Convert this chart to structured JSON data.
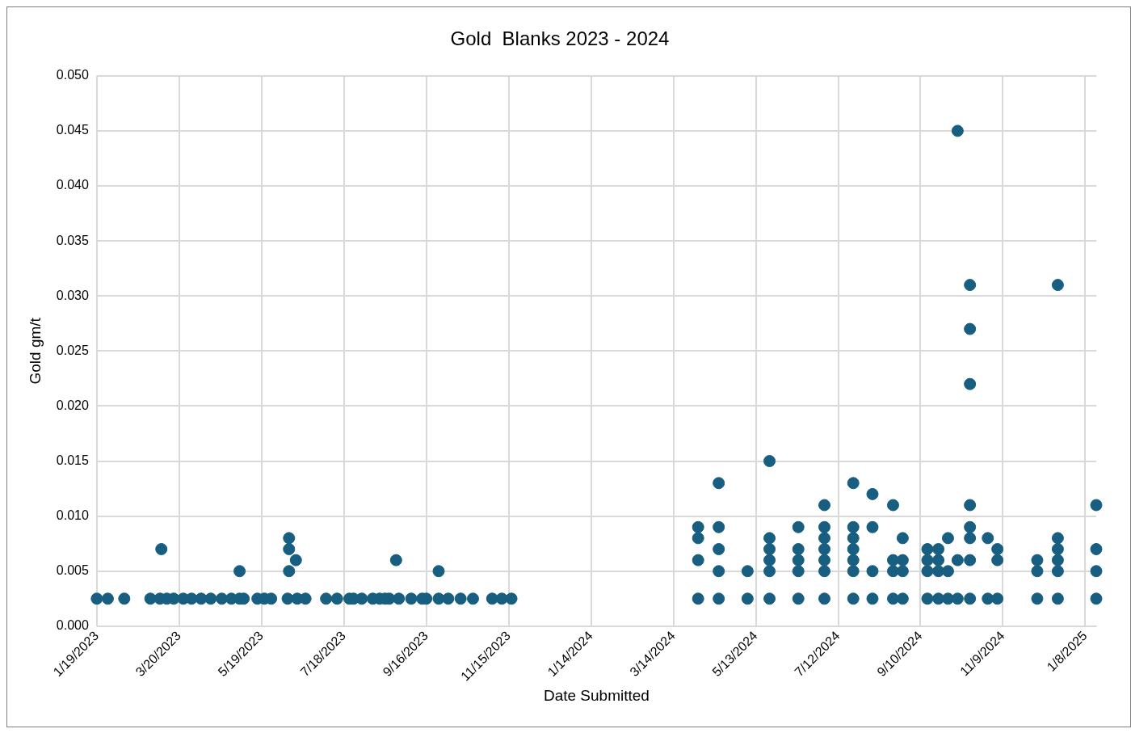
{
  "chart_data": {
    "type": "scatter",
    "title": "Gold  Blanks 2023 - 2024",
    "xlabel": "Date Submitted",
    "ylabel": "Gold gm/t",
    "marker": "circle",
    "grid": true,
    "legend": false,
    "xlim": [
      "2023-01-19",
      "2025-01-16"
    ],
    "xticks": [
      {
        "value": "2023-01-19",
        "label": "1/19/2023"
      },
      {
        "value": "2023-03-20",
        "label": "3/20/2023"
      },
      {
        "value": "2023-05-19",
        "label": "5/19/2023"
      },
      {
        "value": "2023-07-18",
        "label": "7/18/2023"
      },
      {
        "value": "2023-09-16",
        "label": "9/16/2023"
      },
      {
        "value": "2023-11-15",
        "label": "11/15/2023"
      },
      {
        "value": "2024-01-14",
        "label": "1/14/2024"
      },
      {
        "value": "2024-03-14",
        "label": "3/14/2024"
      },
      {
        "value": "2024-05-13",
        "label": "5/13/2024"
      },
      {
        "value": "2024-07-12",
        "label": "7/12/2024"
      },
      {
        "value": "2024-09-10",
        "label": "9/10/2024"
      },
      {
        "value": "2024-11-09",
        "label": "11/9/2024"
      },
      {
        "value": "2025-01-08",
        "label": "1/8/2025"
      }
    ],
    "ylim": [
      0,
      0.05
    ],
    "yticks": [
      {
        "value": 0,
        "label": "0.000"
      },
      {
        "value": 0.005,
        "label": "0.005"
      },
      {
        "value": 0.01,
        "label": "0.010"
      },
      {
        "value": 0.015,
        "label": "0.015"
      },
      {
        "value": 0.02,
        "label": "0.020"
      },
      {
        "value": 0.025,
        "label": "0.025"
      },
      {
        "value": 0.03,
        "label": "0.030"
      },
      {
        "value": 0.035,
        "label": "0.035"
      },
      {
        "value": 0.04,
        "label": "0.040"
      },
      {
        "value": 0.045,
        "label": "0.045"
      },
      {
        "value": 0.05,
        "label": "0.050"
      }
    ],
    "series": [
      {
        "color": "#175e80",
        "x": [
          "2023-01-19",
          "2023-01-27",
          "2023-02-08",
          "2023-02-27",
          "2023-03-06",
          "2023-03-11",
          "2023-03-16",
          "2023-03-23",
          "2023-03-29",
          "2023-04-05",
          "2023-04-12",
          "2023-04-20",
          "2023-04-27",
          "2023-05-03",
          "2023-05-06",
          "2023-05-16",
          "2023-05-21",
          "2023-05-26",
          "2023-06-07",
          "2023-06-14",
          "2023-06-20",
          "2023-07-05",
          "2023-07-13",
          "2023-07-22",
          "2023-07-25",
          "2023-07-31",
          "2023-08-08",
          "2023-08-13",
          "2023-08-17",
          "2023-08-20",
          "2023-08-27",
          "2023-09-05",
          "2023-09-13",
          "2023-09-16",
          "2023-09-25",
          "2023-10-02",
          "2023-10-11",
          "2023-10-20",
          "2023-11-03",
          "2023-11-10",
          "2023-11-17",
          "2023-03-07",
          "2023-05-03",
          "2023-06-08",
          "2023-06-08",
          "2023-06-08",
          "2023-06-13",
          "2023-08-25",
          "2023-09-25",
          "2024-04-01",
          "2024-04-01",
          "2024-04-01",
          "2024-04-01",
          "2024-04-16",
          "2024-04-16",
          "2024-04-16",
          "2024-04-16",
          "2024-04-16",
          "2024-05-07",
          "2024-05-07",
          "2024-05-23",
          "2024-05-23",
          "2024-05-23",
          "2024-05-23",
          "2024-05-23",
          "2024-05-23",
          "2024-06-13",
          "2024-06-13",
          "2024-06-13",
          "2024-06-13",
          "2024-06-13",
          "2024-07-02",
          "2024-07-02",
          "2024-07-02",
          "2024-07-02",
          "2024-07-02",
          "2024-07-02",
          "2024-07-02",
          "2024-07-23",
          "2024-07-23",
          "2024-07-23",
          "2024-07-23",
          "2024-07-23",
          "2024-07-23",
          "2024-07-23",
          "2024-08-06",
          "2024-08-06",
          "2024-08-06",
          "2024-08-06",
          "2024-08-21",
          "2024-08-21",
          "2024-08-21",
          "2024-08-21",
          "2024-08-28",
          "2024-08-28",
          "2024-08-28",
          "2024-08-28",
          "2024-09-15",
          "2024-09-15",
          "2024-09-15",
          "2024-09-15",
          "2024-09-23",
          "2024-09-23",
          "2024-09-23",
          "2024-09-23",
          "2024-09-30",
          "2024-09-30",
          "2024-09-30",
          "2024-10-07",
          "2024-10-07",
          "2024-10-07",
          "2024-10-16",
          "2024-10-16",
          "2024-10-16",
          "2024-10-16",
          "2024-10-16",
          "2024-10-16",
          "2024-10-16",
          "2024-10-16",
          "2024-10-29",
          "2024-10-29",
          "2024-11-05",
          "2024-11-05",
          "2024-11-05",
          "2024-12-04",
          "2024-12-04",
          "2024-12-04",
          "2024-12-19",
          "2024-12-19",
          "2024-12-19",
          "2024-12-19",
          "2024-12-19",
          "2024-12-19",
          "2025-01-16",
          "2025-01-16",
          "2025-01-16",
          "2025-01-16"
        ],
        "values": [
          0.0025,
          0.0025,
          0.0025,
          0.0025,
          0.0025,
          0.0025,
          0.0025,
          0.0025,
          0.0025,
          0.0025,
          0.0025,
          0.0025,
          0.0025,
          0.0025,
          0.0025,
          0.0025,
          0.0025,
          0.0025,
          0.0025,
          0.0025,
          0.0025,
          0.0025,
          0.0025,
          0.0025,
          0.0025,
          0.0025,
          0.0025,
          0.0025,
          0.0025,
          0.0025,
          0.0025,
          0.0025,
          0.0025,
          0.0025,
          0.0025,
          0.0025,
          0.0025,
          0.0025,
          0.0025,
          0.0025,
          0.0025,
          0.007,
          0.005,
          0.008,
          0.007,
          0.005,
          0.006,
          0.006,
          0.005,
          0.0025,
          0.006,
          0.008,
          0.009,
          0.0025,
          0.005,
          0.007,
          0.009,
          0.013,
          0.0025,
          0.005,
          0.0025,
          0.005,
          0.006,
          0.007,
          0.008,
          0.015,
          0.0025,
          0.005,
          0.006,
          0.007,
          0.009,
          0.0025,
          0.005,
          0.006,
          0.007,
          0.008,
          0.009,
          0.011,
          0.0025,
          0.005,
          0.006,
          0.007,
          0.008,
          0.009,
          0.013,
          0.0025,
          0.005,
          0.009,
          0.012,
          0.0025,
          0.005,
          0.006,
          0.011,
          0.0025,
          0.005,
          0.006,
          0.008,
          0.0025,
          0.005,
          0.006,
          0.007,
          0.0025,
          0.005,
          0.006,
          0.007,
          0.0025,
          0.005,
          0.008,
          0.0025,
          0.006,
          0.045,
          0.0025,
          0.006,
          0.008,
          0.009,
          0.011,
          0.022,
          0.027,
          0.031,
          0.0025,
          0.008,
          0.0025,
          0.006,
          0.007,
          0.0025,
          0.005,
          0.006,
          0.0025,
          0.005,
          0.006,
          0.007,
          0.008,
          0.031,
          0.0025,
          0.005,
          0.007,
          0.011
        ]
      }
    ]
  }
}
